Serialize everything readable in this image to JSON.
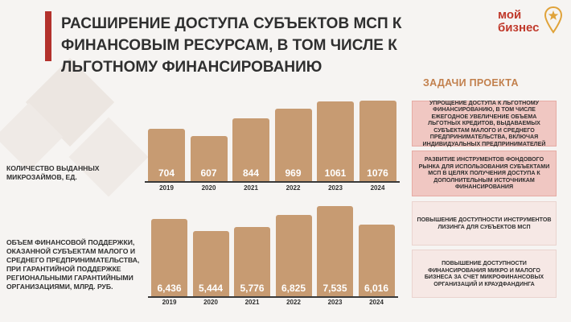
{
  "header": {
    "title": "РАСШИРЕНИЕ ДОСТУПА СУБЪЕКТОВ МСП К ФИНАНСОВЫМ РЕСУРСАМ, В ТОМ ЧИСЛЕ К ЛЬГОТНОМУ  ФИНАНСИРОВАНИЮ",
    "logo_line1": "мой",
    "logo_line2": "бизнес"
  },
  "colors": {
    "bar": "#c79b72",
    "accent": "#b3312c",
    "task_title": "#c2804d"
  },
  "chart_data": [
    {
      "type": "bar",
      "title": "КОЛИЧЕСТВО ВЫДАННЫХ МИКРОЗАЙМОВ, ЕД.",
      "categories": [
        "2019",
        "2020",
        "2021",
        "2022",
        "2023",
        "2024"
      ],
      "values": [
        704,
        607,
        844,
        969,
        1061,
        1076
      ],
      "value_labels": [
        "704",
        "607",
        "844",
        "969",
        "1061",
        "1076"
      ]
    },
    {
      "type": "bar",
      "title": "ОБЪЕМ ФИНАНСОВОЙ ПОДДЕРЖКИ, ОКАЗАННОЙ СУБЪЕКТАМ МАЛОГО И СРЕДНЕГО ПРЕДПРИНИМАТЕЛЬСТВА, ПРИ ГАРАНТИЙНОЙ ПОДДЕРЖКЕ РЕГИОНАЛЬНЫМИ ГАРАНТИЙНЫМИ ОРГАНИЗАЦИЯМИ, МЛРД. РУБ.",
      "categories": [
        "2019",
        "2020",
        "2021",
        "2022",
        "2023",
        "2024"
      ],
      "values": [
        6.436,
        5.444,
        5.776,
        6.825,
        7.535,
        6.016
      ],
      "value_labels": [
        "6,436",
        "5,444",
        "5,776",
        "6,825",
        "7,535",
        "6,016"
      ]
    }
  ],
  "tasks": {
    "title": "ЗАДАЧИ ПРОЕКТА",
    "items": [
      "УПРОЩЕНИЕ ДОСТУПА К ЛЬГОТНОМУ ФИНАНСИРОВАНИЮ, В ТОМ ЧИСЛЕ ЕЖЕГОДНОЕ УВЕЛИЧЕНИЕ ОБЪЕМА ЛЬГОТНЫХ КРЕДИТОВ, ВЫДАВАЕМЫХ СУБЪЕКТАМ МАЛОГО И СРЕДНЕГО ПРЕДПРИНИМАТЕЛЬСТВА, ВКЛЮЧАЯ ИНДИВИДУАЛЬНЫХ ПРЕДПРИНИМАТЕЛЕЙ",
      "РАЗВИТИЕ ИНСТРУМЕНТОВ ФОНДОВОГО РЫНКА ДЛЯ ИСПОЛЬЗОВАНИЯ СУБЪЕКТАМИ МСП В ЦЕЛЯХ ПОЛУЧЕНИЯ ДОСТУПА К ДОПОЛНИТЕЛЬНЫМ ИСТОЧНИКАМ ФИНАНСИРОВАНИЯ",
      "ПОВЫШЕНИЕ ДОСТУПНОСТИ ИНСТРУМЕНТОВ ЛИЗИНГА ДЛЯ СУБЪЕКТОВ МСП",
      "ПОВЫШЕНИЕ ДОСТУПНОСТИ ФИНАНСИРОВАНИЯ МИКРО И МАЛОГО БИЗНЕСА ЗА СЧЕТ МИКРОФИНАНСОВЫХ ОРГАНИЗАЦИЙ И КРАУДФАНДИНГА"
    ]
  }
}
